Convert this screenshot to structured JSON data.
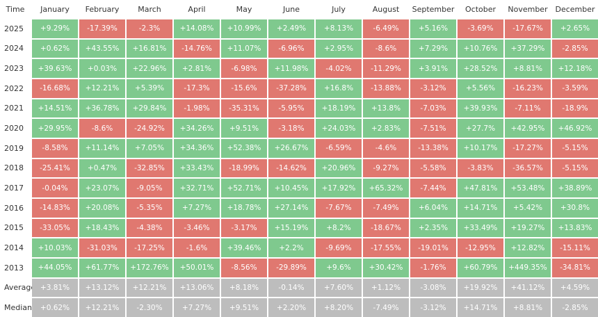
{
  "table": {
    "header": [
      "Time",
      "January",
      "February",
      "March",
      "April",
      "May",
      "June",
      "July",
      "August",
      "September",
      "October",
      "November",
      "December"
    ],
    "rows": [
      [
        "2025",
        "+9.29%",
        "-17.39%",
        "-2.3%",
        "+14.08%",
        "+10.99%",
        "+2.49%",
        "+8.13%",
        "-6.49%",
        "+5.16%",
        "-3.69%",
        "-17.67%",
        "+2.65%"
      ],
      [
        "2024",
        "+0.62%",
        "+43.55%",
        "+16.81%",
        "-14.76%",
        "+11.07%",
        "-6.96%",
        "+2.95%",
        "-8.6%",
        "+7.29%",
        "+10.76%",
        "+37.29%",
        "-2.85%"
      ],
      [
        "2023",
        "+39.63%",
        "+0.03%",
        "+22.96%",
        "+2.81%",
        "-6.98%",
        "+11.98%",
        "-4.02%",
        "-11.29%",
        "+3.91%",
        "+28.52%",
        "+8.81%",
        "+12.18%"
      ],
      [
        "2022",
        "-16.68%",
        "+12.21%",
        "+5.39%",
        "-17.3%",
        "-15.6%",
        "-37.28%",
        "+16.8%",
        "-13.88%",
        "-3.12%",
        "+5.56%",
        "-16.23%",
        "-3.59%"
      ],
      [
        "2021",
        "+14.51%",
        "+36.78%",
        "+29.84%",
        "-1.98%",
        "-35.31%",
        "-5.95%",
        "+18.19%",
        "+13.8%",
        "-7.03%",
        "+39.93%",
        "-7.11%",
        "-18.9%"
      ],
      [
        "2020",
        "+29.95%",
        "-8.6%",
        "-24.92%",
        "+34.26%",
        "+9.51%",
        "-3.18%",
        "+24.03%",
        "+2.83%",
        "-7.51%",
        "+27.7%",
        "+42.95%",
        "+46.92%"
      ],
      [
        "2019",
        "-8.58%",
        "+11.14%",
        "+7.05%",
        "+34.36%",
        "+52.38%",
        "+26.67%",
        "-6.59%",
        "-4.6%",
        "-13.38%",
        "+10.17%",
        "-17.27%",
        "-5.15%"
      ],
      [
        "2018",
        "-25.41%",
        "+0.47%",
        "-32.85%",
        "+33.43%",
        "-18.99%",
        "-14.62%",
        "+20.96%",
        "-9.27%",
        "-5.58%",
        "-3.83%",
        "-36.57%",
        "-5.15%"
      ],
      [
        "2017",
        "-0.04%",
        "+23.07%",
        "-9.05%",
        "+32.71%",
        "+52.71%",
        "+10.45%",
        "+17.92%",
        "+65.32%",
        "-7.44%",
        "+47.81%",
        "+53.48%",
        "+38.89%"
      ],
      [
        "2016",
        "-14.83%",
        "+20.08%",
        "-5.35%",
        "+7.27%",
        "+18.78%",
        "+27.14%",
        "-7.67%",
        "-7.49%",
        "+6.04%",
        "+14.71%",
        "+5.42%",
        "+30.8%"
      ],
      [
        "2015",
        "-33.05%",
        "+18.43%",
        "-4.38%",
        "-3.46%",
        "-3.17%",
        "+15.19%",
        "+8.2%",
        "-18.67%",
        "+2.35%",
        "+33.49%",
        "+19.27%",
        "+13.83%"
      ],
      [
        "2014",
        "+10.03%",
        "-31.03%",
        "-17.25%",
        "-1.6%",
        "+39.46%",
        "+2.2%",
        "-9.69%",
        "-17.55%",
        "-19.01%",
        "-12.95%",
        "+12.82%",
        "-15.11%"
      ],
      [
        "2013",
        "+44.05%",
        "+61.77%",
        "+172.76%",
        "+50.01%",
        "-8.56%",
        "-29.89%",
        "+9.6%",
        "+30.42%",
        "-1.76%",
        "+60.79%",
        "+449.35%",
        "-34.81%"
      ]
    ],
    "summary_rows": [
      [
        "Average",
        "+3.81%",
        "+13.12%",
        "+12.21%",
        "+13.06%",
        "+8.18%",
        "-0.14%",
        "+7.60%",
        "+1.12%",
        "-3.08%",
        "+19.92%",
        "+41.12%",
        "+4.59%"
      ],
      [
        "Median",
        "+0.62%",
        "+12.21%",
        "-2.30%",
        "+7.27%",
        "+9.51%",
        "+2.20%",
        "+8.20%",
        "-7.49%",
        "-3.12%",
        "+14.71%",
        "+8.81%",
        "-2.85%"
      ]
    ]
  }
}
